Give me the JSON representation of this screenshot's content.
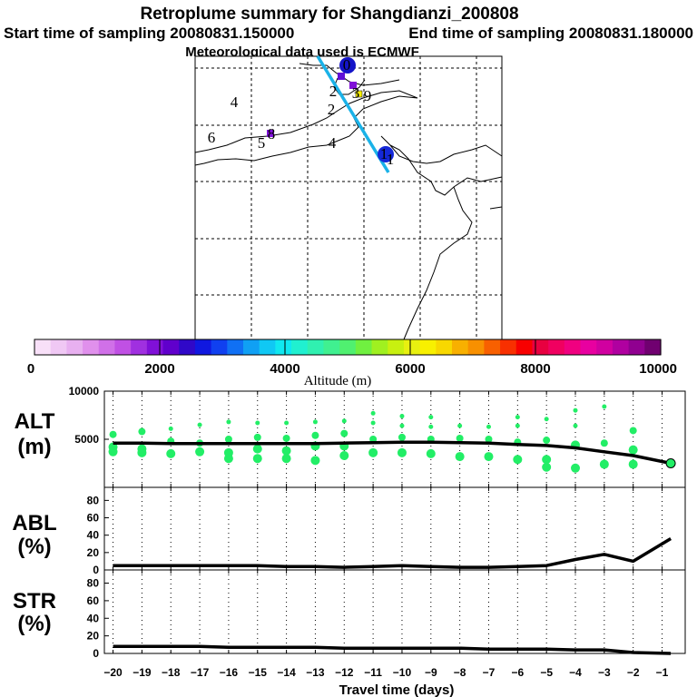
{
  "header": {
    "title": "Retroplume summary for Shangdianzi_200808",
    "start": "Start time of sampling 20080831.150000",
    "end": "End time of sampling 20080831.180000",
    "met": "Meteorological data used is ECMWF"
  },
  "map": {
    "track_color": "#1ab2e8",
    "labels": [
      {
        "text": "4",
        "color": "#1a1a1a"
      },
      {
        "text": "6",
        "color": "#1a1a1a"
      },
      {
        "text": "5",
        "color": "#1a1a1a"
      },
      {
        "text": "8",
        "color": "#1a1a1a"
      },
      {
        "text": "4",
        "color": "#1a1a1a"
      },
      {
        "text": "2",
        "color": "#1a1a1a"
      },
      {
        "text": "2",
        "color": "#1a1a1a"
      },
      {
        "text": "3",
        "color": "#1a1a1a"
      },
      {
        "text": "9",
        "color": "#1a1a1a"
      },
      {
        "text": "1",
        "color": "#1a1a1a"
      },
      {
        "text": "1",
        "color": "#1a1a1a"
      },
      {
        "text": "0",
        "color": "#1a1a1a"
      }
    ]
  },
  "colorbar": {
    "title": "Altitude (m)",
    "min": 0,
    "max": 10000,
    "tick_values": [
      0,
      2000,
      4000,
      6000,
      8000,
      10000
    ],
    "tick_labels": [
      "0",
      "2000",
      "4000",
      "6000",
      "8000",
      "10000"
    ],
    "colors": [
      "#f8e0f8",
      "#f0c8f4",
      "#e8b0f0",
      "#e090ec",
      "#d070e8",
      "#c050e4",
      "#a030e0",
      "#8010d8",
      "#6000cc",
      "#3008c8",
      "#1018e0",
      "#1040f0",
      "#1070f4",
      "#10a0f4",
      "#10c8f4",
      "#10e8f0",
      "#20f0d0",
      "#30f0b0",
      "#40f090",
      "#50f070",
      "#70f040",
      "#a0f020",
      "#c8f010",
      "#e8f010",
      "#f8f000",
      "#f8d800",
      "#f8b000",
      "#f89000",
      "#f86000",
      "#f83000",
      "#f80000",
      "#e80040",
      "#f00060",
      "#f00080",
      "#e800a0",
      "#d000a0",
      "#b000a0",
      "#900090",
      "#700070"
    ]
  },
  "chart_data": [
    {
      "type": "line",
      "title": "ALT (m)",
      "ylabel": "ALT (m)",
      "xlim": [
        -20.3,
        -0.2
      ],
      "ylim": [
        0,
        10000
      ],
      "yticks": [
        5000,
        10000
      ],
      "x": [
        -20,
        -19,
        -18,
        -17,
        -16,
        -15,
        -14,
        -13,
        -12,
        -11,
        -10,
        -9,
        -8,
        -7,
        -6,
        -5,
        -4,
        -3,
        -2,
        -0.7
      ],
      "series": [
        {
          "name": "mean altitude",
          "values": [
            4600,
            4600,
            4550,
            4550,
            4550,
            4550,
            4550,
            4550,
            4600,
            4650,
            4700,
            4700,
            4650,
            4600,
            4450,
            4350,
            4100,
            3700,
            3300,
            2500
          ]
        }
      ],
      "scatter_points": [
        {
          "x": -20,
          "values": [
            5500,
            4200,
            3700
          ]
        },
        {
          "x": -19,
          "values": [
            5800,
            4000,
            3600
          ]
        },
        {
          "x": -18,
          "values": [
            6100,
            4800,
            3500
          ]
        },
        {
          "x": -17,
          "values": [
            6500,
            4600,
            3700
          ]
        },
        {
          "x": -16,
          "values": [
            6800,
            5000,
            3600,
            3000
          ]
        },
        {
          "x": -15,
          "values": [
            6700,
            5200,
            4000,
            3000
          ]
        },
        {
          "x": -14,
          "values": [
            6700,
            5100,
            3800,
            3000
          ]
        },
        {
          "x": -13,
          "values": [
            6800,
            5400,
            4300,
            2800
          ]
        },
        {
          "x": -12,
          "values": [
            6900,
            5600,
            4300,
            3300
          ]
        },
        {
          "x": -11,
          "values": [
            7700,
            6700,
            5000,
            3600
          ]
        },
        {
          "x": -10,
          "values": [
            7400,
            6400,
            5200,
            3600
          ]
        },
        {
          "x": -9,
          "values": [
            7300,
            6300,
            5000,
            3500
          ]
        },
        {
          "x": -8,
          "values": [
            6400,
            5100,
            3200
          ]
        },
        {
          "x": -7,
          "values": [
            6300,
            5000,
            3200
          ]
        },
        {
          "x": -6,
          "values": [
            7300,
            6400,
            4700,
            2900
          ]
        },
        {
          "x": -5,
          "values": [
            7100,
            4900,
            2900,
            2100
          ]
        },
        {
          "x": -4,
          "values": [
            8000,
            6400,
            4400,
            2000
          ]
        },
        {
          "x": -3,
          "values": [
            8400,
            4600,
            2400
          ]
        },
        {
          "x": -2,
          "values": [
            5900,
            3900,
            2400
          ]
        },
        {
          "x": -0.7,
          "values": [
            2500
          ]
        }
      ]
    },
    {
      "type": "line",
      "title": "ABL (%)",
      "ylabel": "ABL (%)",
      "xlim": [
        -20.3,
        -0.2
      ],
      "ylim": [
        0,
        95
      ],
      "yticks": [
        0,
        20,
        40,
        60,
        80
      ],
      "x": [
        -20,
        -19,
        -18,
        -17,
        -16,
        -15,
        -14,
        -13,
        -12,
        -11,
        -10,
        -9,
        -8,
        -7,
        -6,
        -5,
        -4,
        -3,
        -2,
        -0.7
      ],
      "series": [
        {
          "name": "ABL",
          "values": [
            5,
            5,
            5,
            5,
            5,
            5,
            4,
            4,
            3,
            4,
            5,
            4,
            3,
            3,
            4,
            5,
            12,
            18,
            10,
            36
          ]
        }
      ]
    },
    {
      "type": "line",
      "title": "STR (%)",
      "ylabel": "STR (%)",
      "xlabel": "Travel time (days)",
      "xlim": [
        -20.3,
        -0.2
      ],
      "ylim": [
        0,
        95
      ],
      "yticks": [
        0,
        20,
        40,
        60,
        80
      ],
      "xticks": [
        -20,
        -19,
        -18,
        -17,
        -16,
        -15,
        -14,
        -13,
        -12,
        -11,
        -10,
        -9,
        -8,
        -7,
        -6,
        -5,
        -4,
        -3,
        -2,
        -1
      ],
      "xtick_labels": [
        "−20",
        "−19",
        "−18",
        "−17",
        "−16",
        "−15",
        "−14",
        "−13",
        "−12",
        "−11",
        "−10",
        "−9",
        "−8",
        "−7",
        "−6",
        "−5",
        "−4",
        "−3",
        "−2",
        "−1"
      ],
      "x": [
        -20,
        -19,
        -18,
        -17,
        -16,
        -15,
        -14,
        -13,
        -12,
        -11,
        -10,
        -9,
        -8,
        -7,
        -6,
        -5,
        -4,
        -3,
        -2,
        -0.7
      ],
      "series": [
        {
          "name": "STR",
          "values": [
            8,
            8,
            8,
            8,
            7,
            7,
            7,
            7,
            6,
            6,
            6,
            6,
            6,
            5,
            5,
            5,
            4,
            4,
            1,
            0
          ]
        }
      ]
    }
  ]
}
